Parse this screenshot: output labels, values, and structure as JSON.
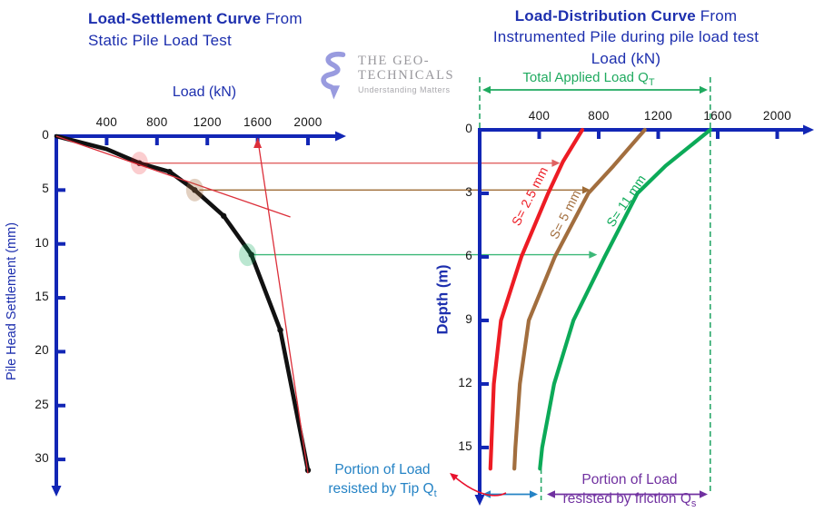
{
  "header": {
    "left_title_bold": "Load-Settlement Curve",
    "left_title_rest": " From",
    "left_title_line2": "Static Pile Load Test",
    "right_title_bold": "Load-Distribution Curve",
    "right_title_rest": " From",
    "right_title_line2": "Instrumented Pile during pile load test"
  },
  "logo": {
    "name_line1": "THE GEO-",
    "name_line2": "TECHNICALS",
    "tagline": "Understanding Matters"
  },
  "colors": {
    "axis_blue": "#1226b5",
    "title_blue": "#1d2fae",
    "curve_black": "#111111",
    "red": "#ed1c24",
    "brown": "#a26e3e",
    "green": "#0caa58",
    "dashed_green": "#2aa86a",
    "arrow_green": "#1faa5f",
    "teal_blue": "#2583c5",
    "purple": "#7030a0",
    "tangent_red": "#dc2f3a",
    "swoosh_red": "#e8112d",
    "logo_lavender": "#999bdf",
    "logo_gray": "#98979c"
  },
  "chart_data": [
    {
      "type": "line",
      "title": "Load-Settlement Curve From Static Pile Load Test",
      "xlabel": "Load (kN)",
      "ylabel": "Pile Head Settlement  (mm)",
      "x_ticks": [
        400,
        800,
        1200,
        1600,
        2000
      ],
      "y_ticks": [
        0,
        5,
        10,
        15,
        20,
        25,
        30
      ],
      "xlim": [
        0,
        2250
      ],
      "ylim": [
        0,
        33
      ],
      "grid": false,
      "series": [
        {
          "name": "load-settlement curve",
          "color": "#111111",
          "load_kN": [
            0,
            400,
            660,
            900,
            1100,
            1330,
            1550,
            1780,
            2000
          ],
          "settlement_mm": [
            0,
            1.2,
            2.5,
            3.3,
            5.0,
            7.4,
            11,
            18,
            31
          ],
          "point_markers_from_index": 2
        }
      ],
      "marked_points": [
        {
          "load_kN": 660,
          "settlement_mm": 2.5,
          "highlight_color": "rgba(237,28,36,0.22)",
          "connector_color": "#e06262",
          "connector_end_load_kN": 540
        },
        {
          "load_kN": 1100,
          "settlement_mm": 5,
          "highlight_color": "rgba(166,110,62,0.32)",
          "connector_color": "#9e6b35",
          "connector_end_load_kN": 745
        },
        {
          "load_kN": 1520,
          "settlement_mm": 11,
          "highlight_color": "rgba(12,170,88,0.28)",
          "connector_color": "#3cb878",
          "connector_end_load_kN": 790
        }
      ],
      "construction_lines": {
        "initial_tangent": {
          "load_kN": [
            0,
            1860
          ],
          "settlement_mm": [
            0,
            7.5
          ]
        },
        "final_tangent": {
          "load_kN": [
            1600,
            2000
          ],
          "settlement_mm": [
            0.2,
            31.3
          ]
        },
        "failure_load_arrow_kN": 1600,
        "color": "#dc2f3a"
      }
    },
    {
      "type": "line",
      "title": "Load-Distribution Curve From Instrumented Pile during pile load test",
      "xlabel": "Load (kN)",
      "ylabel": "Depth (m)",
      "x_ticks": [
        400,
        800,
        1200,
        1600,
        2000
      ],
      "y_ticks": [
        0,
        3,
        6,
        9,
        12,
        15
      ],
      "xlim": [
        0,
        2250
      ],
      "ylim": [
        0,
        17.3
      ],
      "grid": false,
      "series": [
        {
          "name": "S= 2.5 mm",
          "color": "#ed1c24",
          "load_kN": [
            690,
            560,
            460,
            280,
            143,
            95,
            78,
            72
          ],
          "depth_m": [
            0,
            1.5,
            3,
            6,
            9,
            12,
            15,
            16
          ]
        },
        {
          "name": "S= 5 mm",
          "color": "#a26e3e",
          "load_kN": [
            1110,
            900,
            730,
            505,
            330,
            270,
            240,
            233
          ],
          "depth_m": [
            0,
            1.7,
            3,
            6,
            9,
            12,
            15,
            16
          ]
        },
        {
          "name": "S= 11 mm",
          "color": "#0caa58",
          "load_kN": [
            1550,
            1250,
            1060,
            840,
            630,
            500,
            420,
            405
          ],
          "depth_m": [
            0,
            1.7,
            3,
            6,
            9,
            12,
            15,
            16
          ]
        }
      ],
      "dashed_guides_kN": [
        0,
        413,
        1550
      ],
      "annotations": {
        "total_applied_load_text": "Total Applied Load Q",
        "total_applied_load_sub": "T",
        "tip_line1": "Portion of Load",
        "tip_line2": "resisted by Tip Q",
        "tip_sub": "t",
        "friction_line1": "Portion of Load",
        "friction_line2": "resisted by friction Q",
        "friction_sub": "s"
      }
    }
  ]
}
